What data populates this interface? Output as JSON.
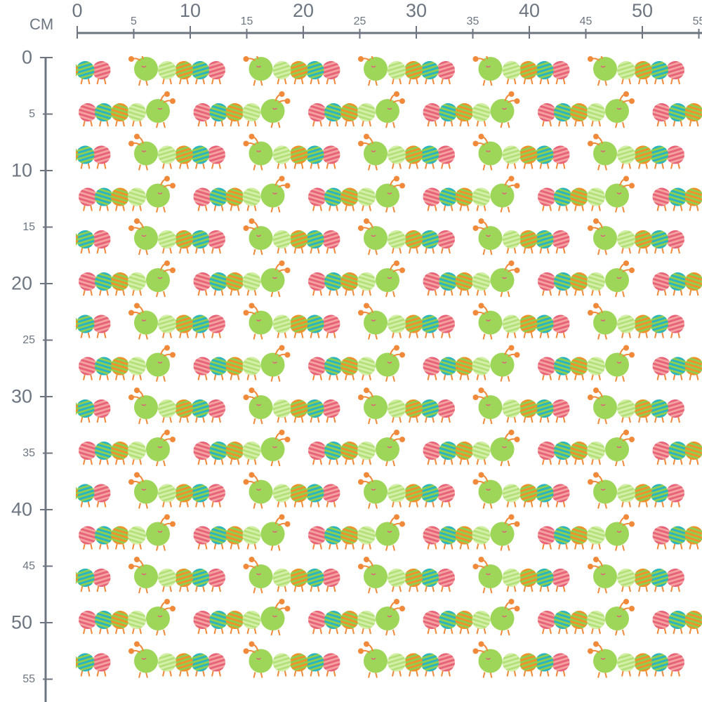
{
  "ruler": {
    "unit": "CM",
    "horizontal_labels": [
      "0",
      "5",
      "10",
      "15",
      "20",
      "25",
      "30",
      "35",
      "40",
      "45",
      "50",
      "55"
    ],
    "vertical_labels": [
      "0",
      "5",
      "10",
      "15",
      "20",
      "25",
      "30",
      "35",
      "40",
      "45",
      "50",
      "55"
    ],
    "color": "#6d7680"
  },
  "pattern": {
    "motif": "caterpillar",
    "background": "#ffffff",
    "colors": {
      "head": "#9ed65a",
      "green": "#8fcf4f",
      "light_green": "#b4e07a",
      "orange": "#f0922b",
      "teal": "#2bb5c0",
      "pink": "#e8637a",
      "legs": "#f08a3a"
    }
  }
}
